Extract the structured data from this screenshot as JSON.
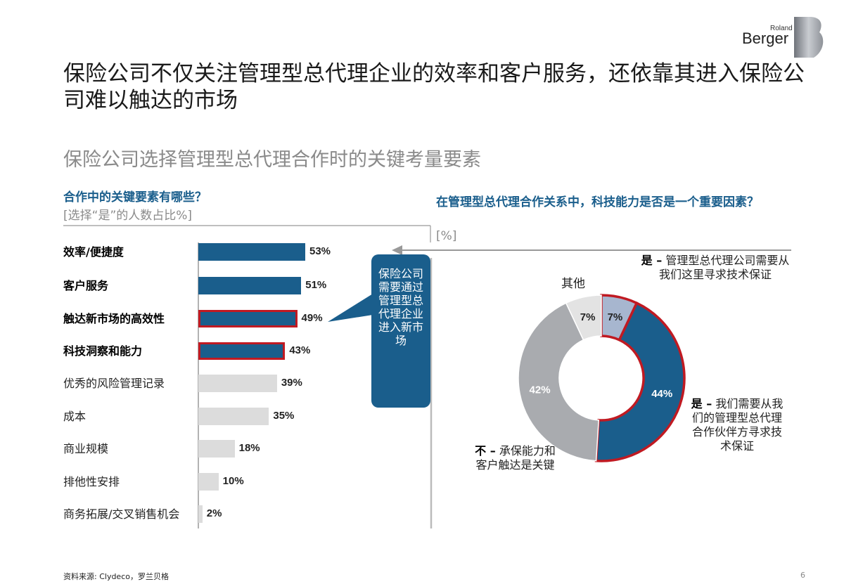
{
  "header": {
    "logo_small": "Roland",
    "logo_large": "Berger",
    "title": "保险公司不仅关注管理型总代理企业的效率和客户服务，还依靠其进入保险公司难以触达的市场",
    "subtitle": "保险公司选择管理型总代理合作时的关键考量要素"
  },
  "left_panel": {
    "question": "合作中的关键要素有哪些？",
    "unit": "[选择“是”的人数占比%]",
    "callout": "保险公司需要通过管理型总代理企业进入新市场"
  },
  "right_panel": {
    "question": "在管理型总代理合作关系中，科技能力是否是一个重要因素？",
    "unit": "[%]",
    "other_label": "其他",
    "annotations": {
      "yes_top_lead": "是 –",
      "yes_top_text": "管理型总代理公司需要从我们这里寻求技术保证",
      "yes_right_lead": "是 –",
      "yes_right_text": "我们需要从我们的管理型总代理合作伙伴方寻求技术保证",
      "no_lead": "不 –",
      "no_text": "承保能力和客户触达是关键"
    }
  },
  "colors": {
    "primary": "#1a5e8c",
    "grey_bar": "#dcdcdc",
    "highlight": "#c01a22",
    "donut_grey": "#a9abaf",
    "donut_light": "#e3e3e3",
    "donut_lightblue": "#a7b6cf"
  },
  "chart_data": [
    {
      "type": "bar",
      "orientation": "horizontal",
      "categories": [
        "效率/便捷度",
        "客户服务",
        "触达新市场的高效性",
        "科技洞察和能力",
        "优秀的风险管理记录",
        "成本",
        "商业规模",
        "排他性安排",
        "商务拓展/交叉销售机会"
      ],
      "values": [
        53,
        51,
        49,
        43,
        39,
        35,
        18,
        10,
        2
      ],
      "value_labels": [
        "53%",
        "51%",
        "49%",
        "43%",
        "39%",
        "35%",
        "18%",
        "10%",
        "2%"
      ],
      "emphasized": [
        true,
        true,
        true,
        true,
        false,
        false,
        false,
        false,
        false
      ],
      "highlighted": [
        false,
        false,
        true,
        true,
        false,
        false,
        false,
        false,
        false
      ]
    },
    {
      "type": "pie",
      "variant": "donut",
      "slices": [
        {
          "label": "是 – 管理型总代理公司需要从我们这里寻求技术保证",
          "value": 7,
          "value_label": "7%",
          "color": "#a7b6cf",
          "highlighted": true
        },
        {
          "label": "是 – 我们需要从我们的管理型总代理合作伙伴方寻求技术保证",
          "value": 44,
          "value_label": "44%",
          "color": "#1a5e8c",
          "highlighted": true
        },
        {
          "label": "不 – 承保能力和客户触达是关键",
          "value": 42,
          "value_label": "42%",
          "color": "#a9abaf",
          "highlighted": false
        },
        {
          "label": "其他",
          "value": 7,
          "value_label": "7%",
          "color": "#e3e3e3",
          "highlighted": false
        }
      ]
    }
  ],
  "footer": {
    "source": "资料来源: Clydeco，罗兰贝格",
    "page": "6"
  }
}
